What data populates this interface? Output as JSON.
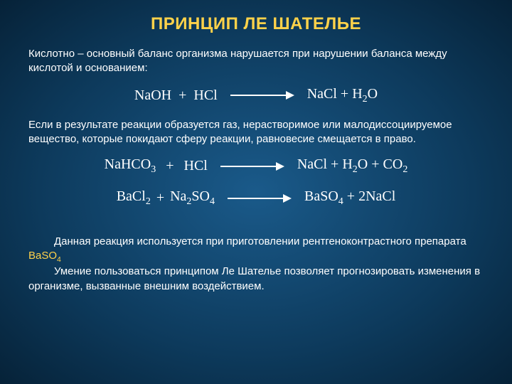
{
  "title": "ПРИНЦИП ЛЕ ШАТЕЛЬЕ",
  "para1": "Кислотно – основный баланс организма нарушается при нарушении баланса между кислотой и основанием:",
  "eq1": {
    "left1": "NaOH",
    "op": "+",
    "left2": "HCl",
    "right": "NaCl + H",
    "rightSub": "2",
    "rightTail": "O"
  },
  "para2": "Если в результате реакции образуется газ, нерастворимое или малодиссоциируемое вещество, которые покидают сферу реакции, равновесие смещается в право.",
  "eq2": {
    "l1": "NaHCO",
    "l1sub": "3",
    "op": "+",
    "l2": "HCl",
    "r": "NaCl + H",
    "rsub1": "2",
    "rm": "O + CO",
    "rsub2": "2"
  },
  "eq3": {
    "l1": "BaCl",
    "l1sub": "2",
    "op": "+",
    "l2a": "Na",
    "l2asub": "2",
    "l2b": "SO",
    "l2bsub": "4",
    "r1": "BaSO",
    "r1sub": "4",
    "r2": " + 2NaCl"
  },
  "para3a": "Данная реакция используется при приготовлении рентгеноконтрастного препарата ",
  "para3b": "BaSO",
  "para3bsub": "4",
  "para4": "Умение пользоваться принципом Ле Шателье позволяет прогнозировать изменения в организме, вызванные внешним воздействием."
}
